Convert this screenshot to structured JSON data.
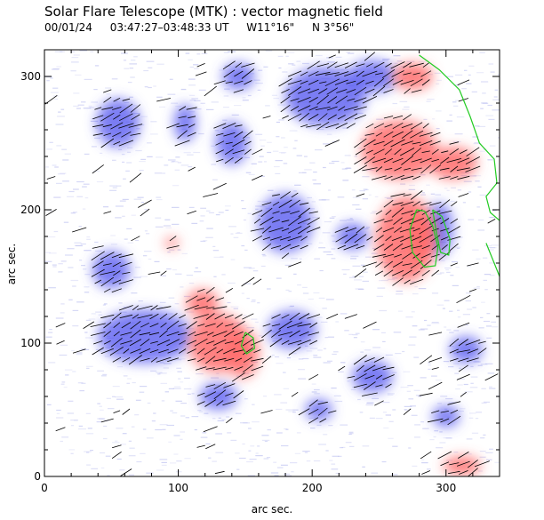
{
  "header": {
    "title": "Solar Flare Telescope (MTK) : vector magnetic field",
    "date": "00/01/24",
    "time_range": "03:47:27–03:48:33 UT",
    "position_ew": "W11°16\"",
    "position_ns": "N 3°56\""
  },
  "chart_data": {
    "type": "heatmap",
    "xlabel": "arc sec.",
    "ylabel": "arc sec.",
    "xlim": [
      0,
      340
    ],
    "ylim": [
      0,
      320
    ],
    "x_ticks": [
      0,
      100,
      200,
      300
    ],
    "y_ticks": [
      0,
      100,
      200,
      300
    ],
    "colors": {
      "positive_polarity": "#ff6b6b",
      "negative_polarity": "#5a5cf0",
      "noise": "#b8bcef",
      "transverse_vectors": "#000000",
      "contour_and_limb": "#22cc22"
    },
    "positive_regions": [
      {
        "x": 130,
        "y": 100,
        "rx": 22,
        "ry": 22
      },
      {
        "x": 148,
        "y": 92,
        "rx": 12,
        "ry": 18
      },
      {
        "x": 118,
        "y": 130,
        "rx": 12,
        "ry": 10
      },
      {
        "x": 270,
        "y": 178,
        "rx": 22,
        "ry": 32
      },
      {
        "x": 283,
        "y": 180,
        "rx": 10,
        "ry": 20
      },
      {
        "x": 265,
        "y": 245,
        "rx": 28,
        "ry": 22
      },
      {
        "x": 305,
        "y": 235,
        "rx": 18,
        "ry": 12
      },
      {
        "x": 275,
        "y": 300,
        "rx": 15,
        "ry": 10
      },
      {
        "x": 312,
        "y": 8,
        "rx": 14,
        "ry": 7
      },
      {
        "x": 95,
        "y": 175,
        "rx": 5,
        "ry": 4
      }
    ],
    "negative_regions": [
      {
        "x": 75,
        "y": 105,
        "rx": 35,
        "ry": 20
      },
      {
        "x": 50,
        "y": 155,
        "rx": 14,
        "ry": 14
      },
      {
        "x": 55,
        "y": 265,
        "rx": 16,
        "ry": 18
      },
      {
        "x": 105,
        "y": 265,
        "rx": 8,
        "ry": 14
      },
      {
        "x": 140,
        "y": 250,
        "rx": 12,
        "ry": 16
      },
      {
        "x": 145,
        "y": 300,
        "rx": 12,
        "ry": 10
      },
      {
        "x": 210,
        "y": 285,
        "rx": 30,
        "ry": 22
      },
      {
        "x": 245,
        "y": 300,
        "rx": 18,
        "ry": 12
      },
      {
        "x": 180,
        "y": 190,
        "rx": 20,
        "ry": 22
      },
      {
        "x": 230,
        "y": 180,
        "rx": 12,
        "ry": 10
      },
      {
        "x": 295,
        "y": 185,
        "rx": 10,
        "ry": 20
      },
      {
        "x": 130,
        "y": 60,
        "rx": 14,
        "ry": 10
      },
      {
        "x": 185,
        "y": 110,
        "rx": 18,
        "ry": 14
      },
      {
        "x": 245,
        "y": 75,
        "rx": 15,
        "ry": 12
      },
      {
        "x": 205,
        "y": 50,
        "rx": 10,
        "ry": 8
      },
      {
        "x": 315,
        "y": 95,
        "rx": 12,
        "ry": 10
      },
      {
        "x": 300,
        "y": 45,
        "rx": 10,
        "ry": 8
      }
    ],
    "neutral_line_contours": [
      {
        "points": [
          [
            278,
            200
          ],
          [
            273,
            185
          ],
          [
            275,
            168
          ],
          [
            284,
            157
          ],
          [
            292,
            158
          ],
          [
            294,
            172
          ],
          [
            290,
            188
          ],
          [
            284,
            199
          ],
          [
            278,
            200
          ]
        ]
      },
      {
        "points": [
          [
            290,
            200
          ],
          [
            297,
            195
          ],
          [
            303,
            178
          ],
          [
            302,
            166
          ],
          [
            296,
            168
          ],
          [
            293,
            182
          ],
          [
            290,
            200
          ]
        ]
      },
      {
        "points": [
          [
            150,
            108
          ],
          [
            156,
            104
          ],
          [
            157,
            96
          ],
          [
            151,
            92
          ],
          [
            147,
            98
          ],
          [
            150,
            108
          ]
        ]
      }
    ],
    "limb": [
      [
        280,
        316
      ],
      [
        295,
        305
      ],
      [
        310,
        290
      ],
      [
        318,
        270
      ],
      [
        325,
        250
      ],
      [
        336,
        238
      ],
      [
        338,
        220
      ],
      [
        330,
        210
      ],
      [
        333,
        198
      ],
      [
        340,
        192
      ]
    ],
    "limb_lower": [
      [
        330,
        175
      ],
      [
        336,
        160
      ],
      [
        340,
        150
      ]
    ]
  }
}
